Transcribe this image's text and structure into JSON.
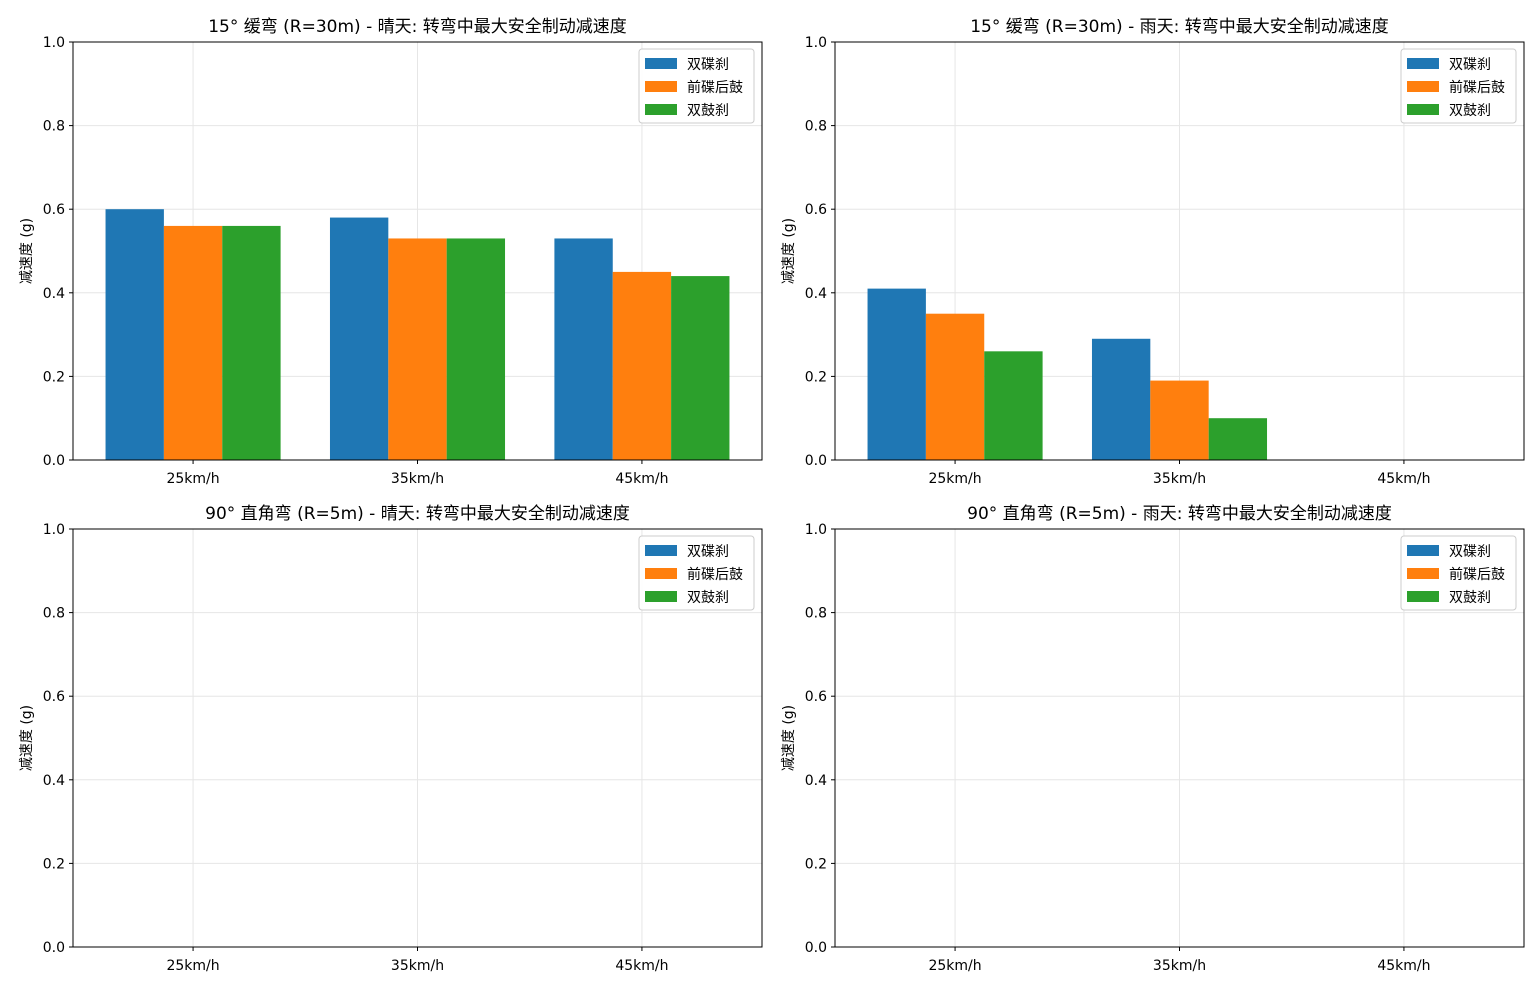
{
  "chart_data": [
    {
      "type": "bar",
      "title": "15° 缓弯 (R=30m) - 晴天: 转弯中最大安全制动减速度",
      "ylabel": "减速度 (g)",
      "xlabel": "",
      "categories": [
        "25km/h",
        "35km/h",
        "45km/h"
      ],
      "ylim": [
        0,
        1.0
      ],
      "yticks": [
        "0.0",
        "0.2",
        "0.4",
        "0.6",
        "0.8",
        "1.0"
      ],
      "grid": true,
      "legend": "top-right",
      "series": [
        {
          "name": "双碟刹",
          "color": "#1f77b4",
          "values": [
            0.6,
            0.58,
            0.53
          ]
        },
        {
          "name": "前碟后鼓",
          "color": "#ff7f0e",
          "values": [
            0.56,
            0.53,
            0.45
          ]
        },
        {
          "name": "双鼓刹",
          "color": "#2ca02c",
          "values": [
            0.56,
            0.53,
            0.44
          ]
        }
      ]
    },
    {
      "type": "bar",
      "title": "15° 缓弯 (R=30m) - 雨天: 转弯中最大安全制动减速度",
      "ylabel": "减速度 (g)",
      "xlabel": "",
      "categories": [
        "25km/h",
        "35km/h",
        "45km/h"
      ],
      "ylim": [
        0,
        1.0
      ],
      "yticks": [
        "0.0",
        "0.2",
        "0.4",
        "0.6",
        "0.8",
        "1.0"
      ],
      "grid": true,
      "legend": "top-right",
      "series": [
        {
          "name": "双碟刹",
          "color": "#1f77b4",
          "values": [
            0.41,
            0.29,
            0
          ]
        },
        {
          "name": "前碟后鼓",
          "color": "#ff7f0e",
          "values": [
            0.35,
            0.19,
            0
          ]
        },
        {
          "name": "双鼓刹",
          "color": "#2ca02c",
          "values": [
            0.26,
            0.1,
            0
          ]
        }
      ]
    },
    {
      "type": "bar",
      "title": "90° 直角弯 (R=5m) - 晴天: 转弯中最大安全制动减速度",
      "ylabel": "减速度 (g)",
      "xlabel": "",
      "categories": [
        "25km/h",
        "35km/h",
        "45km/h"
      ],
      "ylim": [
        0,
        1.0
      ],
      "yticks": [
        "0.0",
        "0.2",
        "0.4",
        "0.6",
        "0.8",
        "1.0"
      ],
      "grid": true,
      "legend": "top-right",
      "series": [
        {
          "name": "双碟刹",
          "color": "#1f77b4",
          "values": [
            0,
            0,
            0
          ]
        },
        {
          "name": "前碟后鼓",
          "color": "#ff7f0e",
          "values": [
            0,
            0,
            0
          ]
        },
        {
          "name": "双鼓刹",
          "color": "#2ca02c",
          "values": [
            0,
            0,
            0
          ]
        }
      ]
    },
    {
      "type": "bar",
      "title": "90° 直角弯 (R=5m) - 雨天: 转弯中最大安全制动减速度",
      "ylabel": "减速度 (g)",
      "xlabel": "",
      "categories": [
        "25km/h",
        "35km/h",
        "45km/h"
      ],
      "ylim": [
        0,
        1.0
      ],
      "yticks": [
        "0.0",
        "0.2",
        "0.4",
        "0.6",
        "0.8",
        "1.0"
      ],
      "grid": true,
      "legend": "top-right",
      "series": [
        {
          "name": "双碟刹",
          "color": "#1f77b4",
          "values": [
            0,
            0,
            0
          ]
        },
        {
          "name": "前碟后鼓",
          "color": "#ff7f0e",
          "values": [
            0,
            0,
            0
          ]
        },
        {
          "name": "双鼓刹",
          "color": "#2ca02c",
          "values": [
            0,
            0,
            0
          ]
        }
      ]
    }
  ]
}
